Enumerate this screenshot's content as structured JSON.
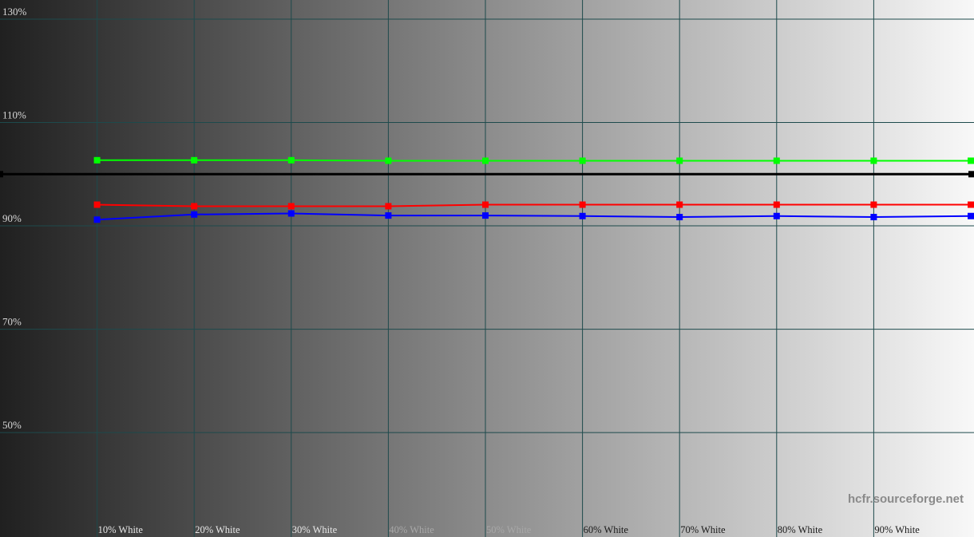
{
  "chart_data": {
    "type": "line",
    "title": "",
    "xlabel": "",
    "ylabel": "",
    "x_range": [
      0,
      100
    ],
    "ylim": [
      29.8,
      133.7
    ],
    "grid": true,
    "y_ticks": [
      {
        "value": 130,
        "label": "130%"
      },
      {
        "value": 110,
        "label": "110%"
      },
      {
        "value": 90,
        "label": "90%"
      },
      {
        "value": 70,
        "label": "70%"
      },
      {
        "value": 50,
        "label": "50%"
      }
    ],
    "x_ticks": [
      {
        "value": 10,
        "label": "10% White"
      },
      {
        "value": 20,
        "label": "20% White"
      },
      {
        "value": 30,
        "label": "30% White"
      },
      {
        "value": 40,
        "label": "40% White"
      },
      {
        "value": 50,
        "label": "50% White"
      },
      {
        "value": 60,
        "label": "60% White"
      },
      {
        "value": 70,
        "label": "70% White"
      },
      {
        "value": 80,
        "label": "80% White"
      },
      {
        "value": 90,
        "label": "90% White"
      }
    ],
    "x": [
      10,
      20,
      30,
      40,
      50,
      60,
      70,
      80,
      90,
      100
    ],
    "reference": {
      "value": 100,
      "color": "#000000"
    },
    "series": [
      {
        "color": "#00ff00",
        "values": [
          102.7,
          102.7,
          102.7,
          102.6,
          102.6,
          102.6,
          102.6,
          102.6,
          102.6,
          102.6
        ]
      },
      {
        "color": "#ff0000",
        "values": [
          94.1,
          93.8,
          93.8,
          93.8,
          94.1,
          94.1,
          94.1,
          94.1,
          94.1,
          94.1
        ]
      },
      {
        "color": "#0000ff",
        "values": [
          91.2,
          92.2,
          92.4,
          92.0,
          92.0,
          91.9,
          91.7,
          91.9,
          91.7,
          91.9
        ]
      }
    ],
    "background": "horizontal gradient dark gray to white",
    "gridline_color": "#1d4a4c"
  },
  "watermark": "hcfr.sourceforge.net"
}
